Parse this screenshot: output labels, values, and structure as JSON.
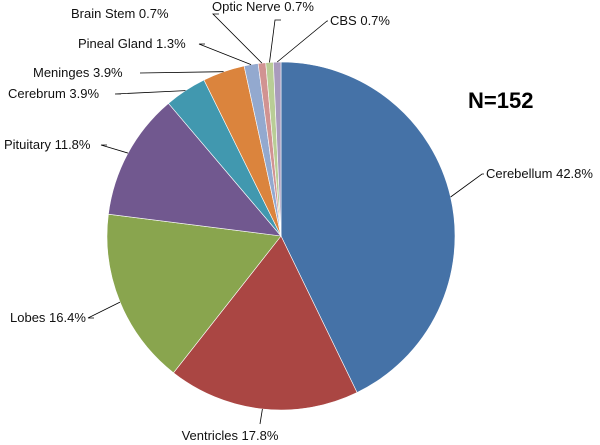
{
  "chart_data": {
    "type": "pie",
    "title": "",
    "annotation": "N=152",
    "start_angle_deg": 0,
    "direction": "clockwise",
    "slices": [
      {
        "name": "Cerebellum",
        "value": 42.8,
        "label": "Cerebellum 42.8%",
        "color": "#4572A7"
      },
      {
        "name": "Ventricles",
        "value": 17.8,
        "label": "Ventricles 17.8%",
        "color": "#AA4643"
      },
      {
        "name": "Lobes",
        "value": 16.4,
        "label": "Lobes 16.4%",
        "color": "#89A54E"
      },
      {
        "name": "Pituitary",
        "value": 11.8,
        "label": "Pituitary 11.8%",
        "color": "#71588F"
      },
      {
        "name": "Cerebrum",
        "value": 3.9,
        "label": "Cerebrum 3.9%",
        "color": "#4198AF"
      },
      {
        "name": "Meninges",
        "value": 3.9,
        "label": "Meninges 3.9%",
        "color": "#DB843D"
      },
      {
        "name": "Pineal Gland",
        "value": 1.3,
        "label": "Pineal Gland 1.3%",
        "color": "#93A9CF"
      },
      {
        "name": "Brain Stem",
        "value": 0.7,
        "label": "Brain Stem 0.7%",
        "color": "#D19392"
      },
      {
        "name": "Optic Nerve",
        "value": 0.7,
        "label": "Optic Nerve 0.7%",
        "color": "#B9CD96"
      },
      {
        "name": "CBS",
        "value": 0.7,
        "label": "CBS 0.7%",
        "color": "#A99BBD"
      }
    ]
  }
}
